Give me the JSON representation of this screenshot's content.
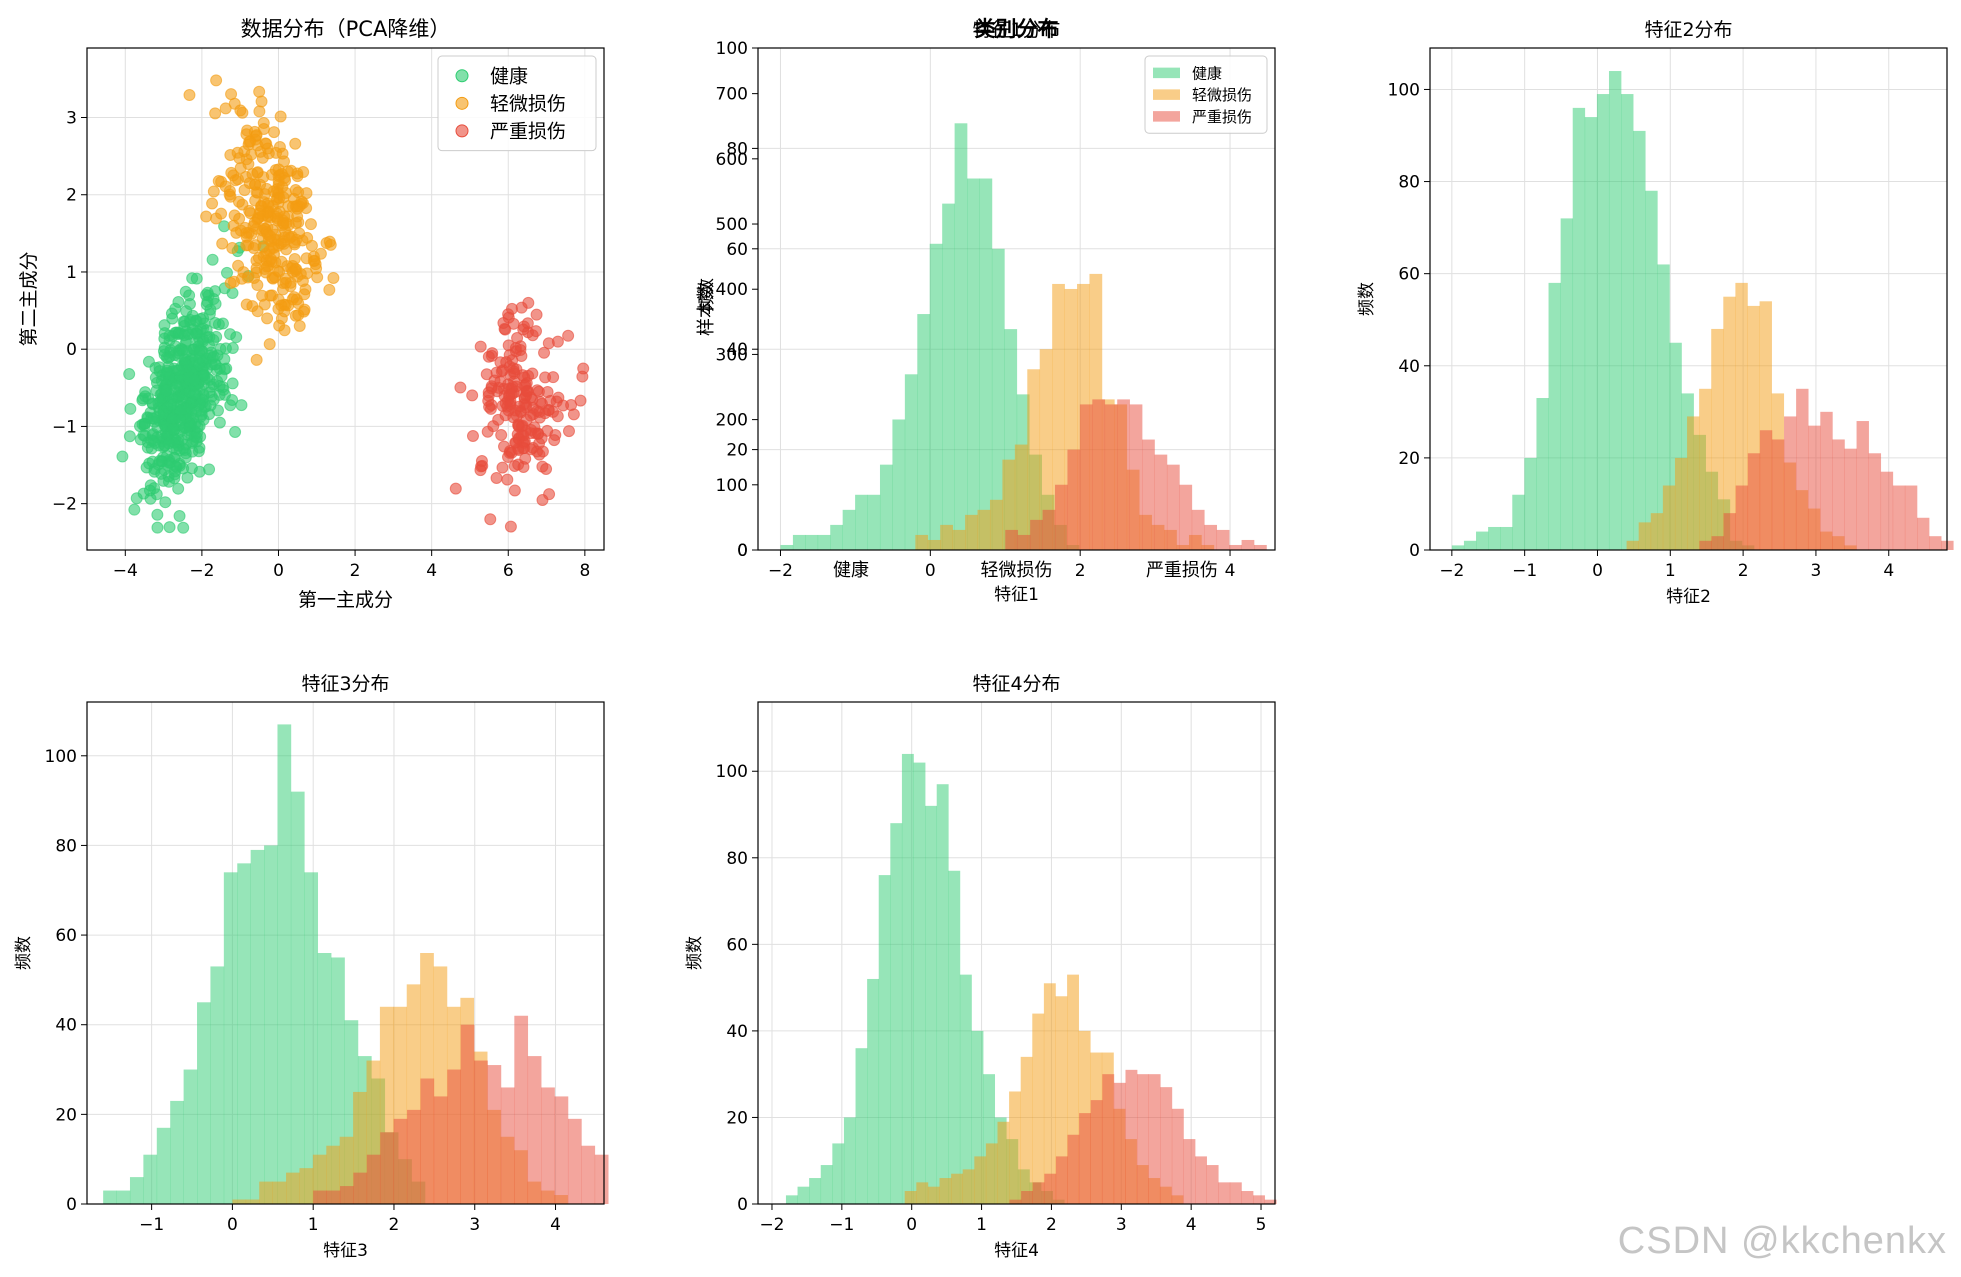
{
  "watermark": "CSDN @kkchenkx",
  "colors": {
    "healthy": "#2ecc71",
    "light": "#f39c12",
    "severe": "#e74c3c",
    "grid": "#e0e0e0"
  },
  "legend_labels": [
    "健康",
    "轻微损伤",
    "严重损伤"
  ],
  "chart_data": [
    {
      "id": "pca",
      "type": "scatter",
      "title": "数据分布（PCA降维）",
      "xlabel": "第一主成分",
      "ylabel": "第二主成分",
      "xlim": [
        -5,
        8.5
      ],
      "ylim": [
        -2.6,
        3.9
      ],
      "xticks": [
        -4,
        -2,
        0,
        2,
        4,
        6,
        8
      ],
      "yticks": [
        -2,
        -1,
        0,
        1,
        2,
        3
      ],
      "grid": true,
      "legend": "top-right",
      "series": [
        {
          "name": "健康",
          "color": "#2ecc71",
          "center": [
            -2.5,
            -0.6
          ],
          "spread": [
            0.6,
            0.65
          ],
          "count": 500,
          "corr": 0.55
        },
        {
          "name": "轻微损伤",
          "color": "#f39c12",
          "center": [
            -0.2,
            1.7
          ],
          "spread": [
            0.6,
            0.7
          ],
          "count": 300,
          "corr": -0.45
        },
        {
          "name": "严重损伤",
          "color": "#e74c3c",
          "center": [
            6.3,
            -0.7
          ],
          "spread": [
            0.55,
            0.6
          ],
          "count": 200,
          "corr": 0.0
        }
      ]
    },
    {
      "id": "classdist",
      "type": "bar",
      "title": "类别分布",
      "overlay_title": "特征1分布",
      "xlabel": "特征1",
      "ylabel": "样本数",
      "overlay_ylabel": "频数",
      "categories": [
        "健康",
        "轻微损伤",
        "严重损伤"
      ],
      "values": [
        0,
        0,
        0
      ],
      "ylim": [
        0,
        770
      ],
      "yticks": [
        0,
        100,
        200,
        300,
        400,
        500,
        600,
        700
      ],
      "overlay_ylim": [
        0,
        100
      ],
      "overlay_yticks": [
        0,
        20,
        40,
        60,
        80,
        100
      ],
      "overlay_xlim": [
        -2.3,
        4.6
      ],
      "overlay_xticks": [
        -2,
        0,
        2,
        4
      ],
      "legend": "top-right",
      "hist": [
        {
          "name": "健康",
          "start": -2.0,
          "width": 0.166,
          "counts": [
            1,
            3,
            3,
            3,
            5,
            8,
            11,
            11,
            17,
            26,
            35,
            47,
            61,
            69,
            85,
            74,
            74,
            60,
            44,
            31,
            19,
            11,
            5,
            1
          ]
        },
        {
          "name": "轻微损伤",
          "start": -0.2,
          "width": 0.166,
          "counts": [
            3,
            2,
            5,
            4,
            7,
            8,
            10,
            18,
            21,
            36,
            40,
            53,
            52,
            53,
            55,
            30,
            29,
            16,
            7,
            5,
            4,
            1,
            3,
            1
          ]
        },
        {
          "name": "严重损伤",
          "start": 1.0,
          "width": 0.166,
          "counts": [
            4,
            3,
            6,
            8,
            13,
            20,
            29,
            30,
            29,
            30,
            29,
            22,
            19,
            17,
            13,
            8,
            5,
            4,
            1,
            2,
            1
          ]
        }
      ]
    },
    {
      "id": "f2",
      "type": "bar",
      "title": "特征2分布",
      "xlabel": "特征2",
      "ylabel": "频数",
      "xlim": [
        -2.3,
        4.8
      ],
      "xticks": [
        -2,
        -1,
        0,
        1,
        2,
        3,
        4
      ],
      "ylim": [
        0,
        109
      ],
      "yticks": [
        0,
        20,
        40,
        60,
        80,
        100
      ],
      "hist": [
        {
          "name": "健康",
          "start": -2.0,
          "width": 0.166,
          "counts": [
            1,
            2,
            4,
            5,
            5,
            12,
            20,
            33,
            58,
            72,
            96,
            94,
            99,
            104,
            99,
            91,
            78,
            62,
            45,
            34,
            25,
            17,
            11,
            2,
            1
          ]
        },
        {
          "name": "轻微损伤",
          "start": 0.4,
          "width": 0.166,
          "counts": [
            2,
            6,
            8,
            14,
            20,
            29,
            35,
            48,
            55,
            58,
            53,
            54,
            34,
            19,
            13,
            9,
            4,
            3,
            1
          ]
        },
        {
          "name": "严重损伤",
          "start": 1.4,
          "width": 0.166,
          "counts": [
            2,
            3,
            8,
            14,
            21,
            26,
            24,
            29,
            35,
            27,
            30,
            24,
            22,
            28,
            21,
            17,
            14,
            14,
            7,
            3,
            2,
            3,
            1
          ]
        }
      ]
    },
    {
      "id": "f3",
      "type": "bar",
      "title": "特征3分布",
      "xlabel": "特征3",
      "ylabel": "频数",
      "xlim": [
        -1.8,
        4.6
      ],
      "xticks": [
        -1,
        0,
        1,
        2,
        3,
        4
      ],
      "ylim": [
        0,
        112
      ],
      "yticks": [
        0,
        20,
        40,
        60,
        80,
        100
      ],
      "hist": [
        {
          "name": "健康",
          "start": -1.6,
          "width": 0.166,
          "counts": [
            3,
            3,
            6,
            11,
            17,
            23,
            30,
            45,
            53,
            74,
            76,
            79,
            80,
            107,
            92,
            74,
            56,
            55,
            41,
            33,
            28,
            16,
            10,
            5
          ]
        },
        {
          "name": "轻微损伤",
          "start": 0.0,
          "width": 0.166,
          "counts": [
            1,
            1,
            5,
            5,
            7,
            8,
            11,
            13,
            15,
            25,
            32,
            44,
            44,
            49,
            56,
            53,
            44,
            46,
            34,
            21,
            15,
            12,
            5,
            3,
            2
          ]
        },
        {
          "name": "严重损伤",
          "start": 1.0,
          "width": 0.166,
          "counts": [
            3,
            3,
            4,
            7,
            11,
            16,
            19,
            21,
            28,
            24,
            30,
            40,
            32,
            31,
            26,
            42,
            33,
            26,
            24,
            19,
            13,
            11,
            8,
            6,
            3
          ]
        }
      ]
    },
    {
      "id": "f4",
      "type": "bar",
      "title": "特征4分布",
      "xlabel": "特征4",
      "ylabel": "频数",
      "xlim": [
        -2.2,
        5.2
      ],
      "xticks": [
        -2,
        -1,
        0,
        1,
        2,
        3,
        4,
        5
      ],
      "ylim": [
        0,
        116
      ],
      "yticks": [
        0,
        20,
        40,
        60,
        80,
        100
      ],
      "hist": [
        {
          "name": "健康",
          "start": -1.8,
          "width": 0.166,
          "counts": [
            2,
            4,
            6,
            9,
            14,
            20,
            36,
            52,
            76,
            88,
            104,
            102,
            92,
            97,
            77,
            53,
            40,
            30,
            20,
            15,
            8,
            5,
            3,
            1
          ]
        },
        {
          "name": "轻微损伤",
          "start": -0.1,
          "width": 0.166,
          "counts": [
            3,
            5,
            4,
            6,
            7,
            8,
            11,
            14,
            19,
            26,
            34,
            44,
            51,
            48,
            53,
            40,
            35,
            35,
            22,
            15,
            9,
            6,
            4,
            2
          ]
        },
        {
          "name": "严重损伤",
          "start": 1.4,
          "width": 0.166,
          "counts": [
            1,
            3,
            5,
            7,
            11,
            16,
            21,
            24,
            30,
            28,
            31,
            30,
            30,
            27,
            22,
            15,
            11,
            9,
            5,
            5,
            3,
            2,
            1
          ]
        }
      ]
    }
  ]
}
